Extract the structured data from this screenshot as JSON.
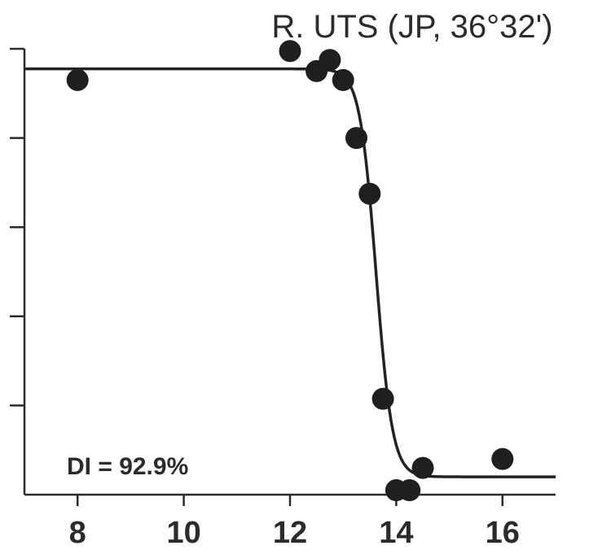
{
  "chart_data": {
    "type": "scatter",
    "title": "R. UTS (JP, 36°32')",
    "annotation": "DI = 92.9%",
    "xlabel": "",
    "ylabel": "",
    "xlim": [
      7,
      17
    ],
    "ylim": [
      0,
      100
    ],
    "x_ticks": [
      8,
      10,
      12,
      14,
      16
    ],
    "y_ticks": [
      0,
      20,
      40,
      60,
      80,
      100
    ],
    "y_tick_labels_shown": false,
    "grid": false,
    "points": [
      {
        "x": 8,
        "y": 93
      },
      {
        "x": 12,
        "y": 99.5
      },
      {
        "x": 12.5,
        "y": 95
      },
      {
        "x": 12.75,
        "y": 97.5
      },
      {
        "x": 13,
        "y": 93
      },
      {
        "x": 13.25,
        "y": 80
      },
      {
        "x": 13.5,
        "y": 67.5
      },
      {
        "x": 13.75,
        "y": 21.5
      },
      {
        "x": 14,
        "y": 1
      },
      {
        "x": 14.25,
        "y": 1
      },
      {
        "x": 14.5,
        "y": 6
      },
      {
        "x": 16,
        "y": 8
      }
    ],
    "fit": {
      "type": "logistic",
      "upper": 95.5,
      "lower": 4,
      "midpoint": 13.62,
      "slope": 6.5,
      "x_range": [
        7,
        17
      ]
    },
    "colors": {
      "axis": "#2b2b2b",
      "points": "#1f1f1f",
      "curve": "#222222"
    }
  }
}
